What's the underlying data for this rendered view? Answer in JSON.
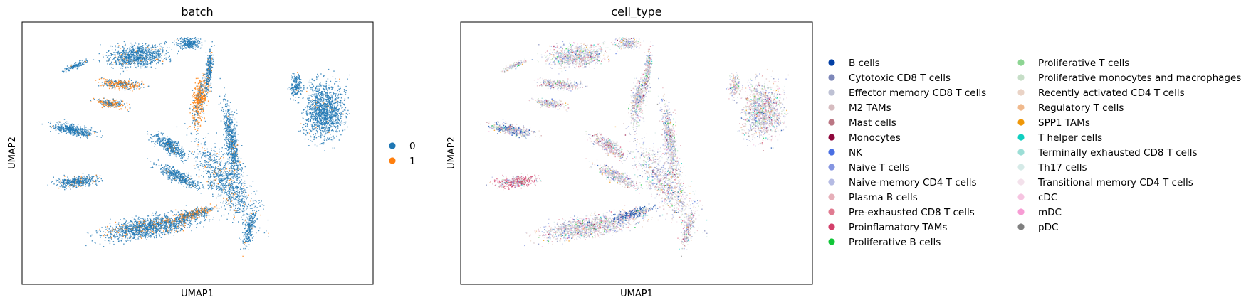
{
  "chart_data": [
    {
      "type": "scatter",
      "title": "batch",
      "xlabel": "UMAP1",
      "ylabel": "UMAP2",
      "grid": false,
      "ticks": "none",
      "legend": {
        "placement": "right",
        "entries": [
          {
            "label": "0",
            "color": "#1f77b4"
          },
          {
            "label": "1",
            "color": "#ff7f0e"
          }
        ]
      }
    },
    {
      "type": "scatter",
      "title": "cell_type",
      "xlabel": "UMAP1",
      "ylabel": "UMAP2",
      "grid": false,
      "ticks": "none",
      "legend": {
        "placement": "right",
        "columns": 2,
        "entries": [
          {
            "label": "B cells",
            "color": "#023fa5"
          },
          {
            "label": "Cytotoxic CD8 T cells",
            "color": "#7d87b9"
          },
          {
            "label": "Effector memory CD8 T cells",
            "color": "#bec1d4"
          },
          {
            "label": "M2 TAMs",
            "color": "#d6bcc0"
          },
          {
            "label": "Mast cells",
            "color": "#bb7784"
          },
          {
            "label": "Monocytes",
            "color": "#8e063b"
          },
          {
            "label": "NK",
            "color": "#4a6fe3"
          },
          {
            "label": "Naive T cells",
            "color": "#8595e1"
          },
          {
            "label": "Naive-memory CD4 T cells",
            "color": "#b5bbe3"
          },
          {
            "label": "Plasma B cells",
            "color": "#e6afb9"
          },
          {
            "label": "Pre-exhausted CD8 T cells",
            "color": "#e07b91"
          },
          {
            "label": "Proinflamatory TAMs",
            "color": "#d33f6a"
          },
          {
            "label": "Proliferative B cells",
            "color": "#11c638"
          },
          {
            "label": "Proliferative T cells",
            "color": "#8dd593"
          },
          {
            "label": "Proliferative monocytes and macrophages",
            "color": "#c6dec7"
          },
          {
            "label": "Recently activated CD4 T cells",
            "color": "#ead3c6"
          },
          {
            "label": "Regulatory T cells",
            "color": "#f0b98d"
          },
          {
            "label": "SPP1 TAMs",
            "color": "#ef9708"
          },
          {
            "label": "T helper cells",
            "color": "#0fcfc0"
          },
          {
            "label": "Terminally exhausted CD8 T cells",
            "color": "#9cded6"
          },
          {
            "label": "Th17 cells",
            "color": "#d5eae7"
          },
          {
            "label": "Transitional memory CD4 T cells",
            "color": "#f3e1eb"
          },
          {
            "label": "cDC",
            "color": "#f6c4e1"
          },
          {
            "label": "mDC",
            "color": "#f79cd4"
          },
          {
            "label": "pDC",
            "color": "#7f7f7f"
          }
        ]
      }
    }
  ]
}
